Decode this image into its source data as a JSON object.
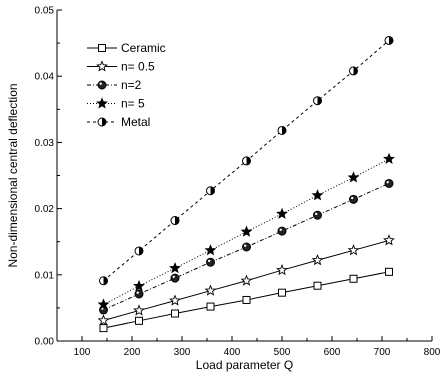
{
  "chart_data": {
    "type": "line",
    "title": "",
    "xlabel": "Load parameter Q",
    "ylabel": "Non-dimensional central deflection",
    "xlim": [
      50,
      800
    ],
    "ylim": [
      0,
      0.05
    ],
    "x_ticks": [
      100,
      200,
      300,
      400,
      500,
      600,
      700,
      800
    ],
    "x_tick_labels": [
      "100",
      "200",
      "300",
      "400",
      "500",
      "600",
      "700",
      "800"
    ],
    "y_ticks": [
      0,
      0.01,
      0.02,
      0.03,
      0.04,
      0.05
    ],
    "y_tick_labels": [
      "0.00",
      "0.01",
      "0.02",
      "0.03",
      "0.04",
      "0.05"
    ],
    "grid": false,
    "legend_position": "top-left",
    "x": [
      143,
      214,
      286,
      357,
      429,
      500,
      571,
      643,
      714
    ],
    "series": [
      {
        "name": "Ceramic",
        "marker": "open-square",
        "line": "solid",
        "values": [
          0.00195,
          0.00305,
          0.00415,
          0.0052,
          0.0062,
          0.0073,
          0.00835,
          0.0094,
          0.01045
        ]
      },
      {
        "name": "n= 0.5",
        "marker": "open-star",
        "line": "solid",
        "values": [
          0.0031,
          0.0046,
          0.0061,
          0.0076,
          0.0091,
          0.0107,
          0.0122,
          0.0137,
          0.0152
        ]
      },
      {
        "name": "n=2",
        "marker": "filled-circle",
        "line": "dashdot",
        "values": [
          0.0047,
          0.0071,
          0.0095,
          0.0119,
          0.0142,
          0.0166,
          0.019,
          0.0214,
          0.0238
        ]
      },
      {
        "name": "n= 5",
        "marker": "filled-star",
        "line": "dotted",
        "values": [
          0.0055,
          0.0083,
          0.011,
          0.0137,
          0.0165,
          0.0192,
          0.022,
          0.0247,
          0.0275
        ]
      },
      {
        "name": "Metal",
        "marker": "half-circle",
        "line": "dashed",
        "values": [
          0.0091,
          0.0136,
          0.0182,
          0.0227,
          0.0272,
          0.0318,
          0.0363,
          0.0408,
          0.0454
        ]
      }
    ]
  }
}
